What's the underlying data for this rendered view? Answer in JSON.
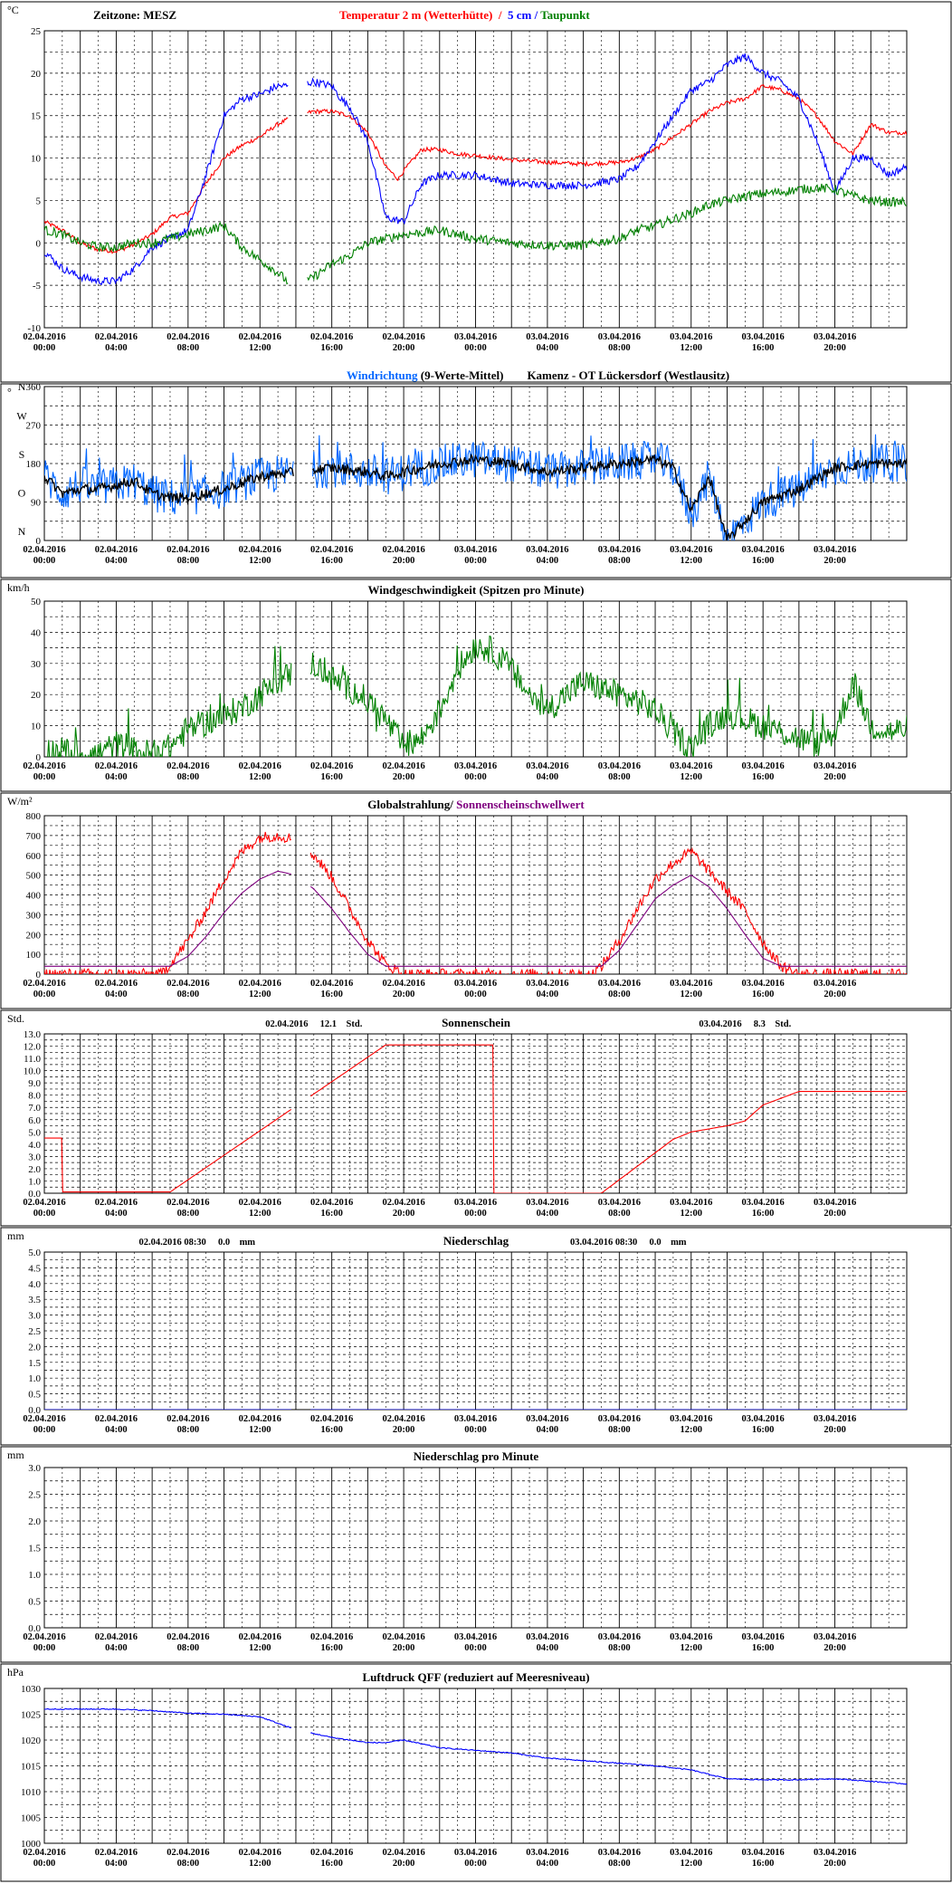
{
  "x_tick_labels": [
    [
      "02.04.2016",
      "00:00"
    ],
    [
      "02.04.2016",
      "04:00"
    ],
    [
      "02.04.2016",
      "08:00"
    ],
    [
      "02.04.2016",
      "12:00"
    ],
    [
      "02.04.2016",
      "16:00"
    ],
    [
      "02.04.2016",
      "20:00"
    ],
    [
      "03.04.2016",
      "00:00"
    ],
    [
      "03.04.2016",
      "04:00"
    ],
    [
      "03.04.2016",
      "08:00"
    ],
    [
      "03.04.2016",
      "12:00"
    ],
    [
      "03.04.2016",
      "16:00"
    ],
    [
      "03.04.2016",
      "20:00"
    ]
  ],
  "chart_data": [
    {
      "id": "temperature",
      "type": "line",
      "unit": "°C",
      "timezone_label": "Zeitzone: MESZ",
      "title_parts": [
        {
          "text": "Temperatur 2 m (Wetterhütte)",
          "color": "#ff0000"
        },
        {
          "text": "  /  ",
          "color": "#ff0000"
        },
        {
          "text": "5 cm",
          "color": "#0000ff"
        },
        {
          "text": " / ",
          "color": "#0000ff"
        },
        {
          "text": "Taupunkt",
          "color": "#008000"
        }
      ],
      "ylim": [
        -10,
        25
      ],
      "y_ticks": [
        "-10",
        "-5",
        "0",
        "5",
        "10",
        "15",
        "20",
        "25"
      ],
      "x_range_hours": [
        0,
        48
      ],
      "gap_hours": [
        13.6,
        14.6
      ],
      "series": [
        {
          "name": "Temperatur 2 m (Wetterhütte)",
          "color": "#ff0000",
          "noise": 0.25,
          "x": [
            0,
            1,
            2,
            3,
            4,
            5,
            6,
            7,
            8,
            9,
            10,
            11,
            12,
            13,
            14,
            15,
            16,
            17,
            18,
            19,
            19.7,
            20,
            21,
            22,
            23,
            24,
            26,
            28,
            30,
            32,
            33,
            34,
            35,
            36,
            37,
            38,
            39,
            40,
            41,
            42,
            43,
            44,
            45,
            46,
            47,
            48
          ],
          "y": [
            2.5,
            1.5,
            0,
            -0.8,
            -1,
            -0.2,
            1,
            3,
            3.5,
            7,
            10,
            11.5,
            12.5,
            14,
            15,
            15.5,
            15.5,
            15,
            13,
            9,
            7.5,
            8.5,
            11,
            11,
            10.5,
            10.3,
            9.8,
            9.5,
            9.3,
            9.5,
            10,
            11,
            12.5,
            14,
            15.5,
            16.5,
            17,
            18.5,
            18,
            17,
            15,
            12,
            10.5,
            14,
            13,
            13
          ]
        },
        {
          "name": "5 cm",
          "color": "#0000ff",
          "noise": 0.45,
          "x": [
            0,
            1,
            2,
            3,
            4,
            5,
            6,
            7,
            8,
            9,
            10,
            11,
            12,
            13,
            14,
            15,
            16,
            16.5,
            17,
            18,
            19,
            20,
            21,
            22,
            23,
            24,
            26,
            28,
            30,
            32,
            33,
            34,
            35,
            36,
            37,
            38,
            39,
            40,
            41,
            42,
            43,
            44,
            45,
            46,
            47,
            48
          ],
          "y": [
            -1,
            -3,
            -4,
            -4.5,
            -4.5,
            -3,
            -0.5,
            0.5,
            1.5,
            8,
            15,
            17,
            17.5,
            18.5,
            18.5,
            19,
            18.5,
            17,
            16,
            12,
            3,
            2.5,
            7,
            8,
            8,
            8,
            7,
            6.8,
            6.8,
            7.5,
            9,
            12,
            15,
            18,
            19,
            21,
            22,
            20,
            19,
            17,
            12,
            6,
            10,
            10,
            8,
            9
          ]
        },
        {
          "name": "Taupunkt",
          "color": "#008000",
          "noise": 0.55,
          "x": [
            0,
            1,
            2,
            3,
            4,
            5,
            6,
            7,
            8,
            9,
            10,
            11,
            12,
            13,
            14,
            15,
            16,
            17,
            18,
            19,
            20,
            21,
            22,
            23,
            24,
            26,
            28,
            30,
            32,
            33,
            34,
            35,
            36,
            37,
            38,
            39,
            40,
            41,
            42,
            43,
            44,
            45,
            46,
            47,
            48
          ],
          "y": [
            1.5,
            1,
            0,
            -0.5,
            -0.5,
            0,
            0,
            0.5,
            1,
            1.5,
            2,
            -0.5,
            -2,
            -3.5,
            -5.5,
            -4,
            -2.5,
            -1.5,
            0,
            0.5,
            1,
            1.2,
            1.5,
            1,
            0.5,
            0,
            -0.3,
            -0.3,
            0.5,
            1.5,
            2,
            2.8,
            3.5,
            4.5,
            5,
            5.5,
            5.8,
            6,
            6.3,
            6.5,
            6.3,
            5.5,
            5,
            4.8,
            4.8
          ]
        }
      ]
    },
    {
      "id": "wind-direction",
      "type": "line",
      "unit": "°",
      "title_parts": [
        {
          "text": "Windrichtung",
          "color": "#0066ff"
        },
        {
          "text": " (9-Werte-Mittel)",
          "color": "#000000"
        },
        {
          "text": "        Kamenz - OT Lückersdorf (Westlausitz)",
          "color": "#000000"
        }
      ],
      "ylim": [
        0,
        360
      ],
      "y_ticks": [
        "0",
        "90",
        "180",
        "270",
        "360"
      ],
      "compass_labels": [
        "N",
        "O",
        "S",
        "W",
        "N"
      ],
      "x_range_hours": [
        0,
        48
      ],
      "gap_hours": [
        13.9,
        14.9
      ],
      "series": [
        {
          "name": "Windrichtung",
          "color": "#0066ff",
          "noise": 45,
          "spikes": true,
          "x": [
            0,
            1,
            2,
            3,
            4,
            5,
            6,
            7,
            8,
            10,
            12,
            14,
            16,
            18,
            19,
            20,
            22,
            24,
            26,
            28,
            30,
            32,
            34,
            35,
            36,
            37,
            38,
            40,
            42,
            44,
            46,
            48
          ],
          "y": [
            150,
            110,
            130,
            120,
            130,
            140,
            110,
            100,
            100,
            120,
            150,
            160,
            170,
            160,
            150,
            160,
            180,
            190,
            180,
            160,
            170,
            180,
            190,
            170,
            60,
            150,
            0,
            90,
            120,
            170,
            180,
            180
          ]
        },
        {
          "name": "9-Werte-Mittel",
          "color": "#000000",
          "noise": 12,
          "x": [
            0,
            1,
            2,
            3,
            4,
            5,
            6,
            7,
            8,
            10,
            12,
            14,
            16,
            18,
            19,
            20,
            22,
            24,
            26,
            28,
            30,
            32,
            34,
            35,
            36,
            37,
            38,
            40,
            42,
            44,
            46,
            48
          ],
          "y": [
            150,
            110,
            120,
            120,
            130,
            140,
            110,
            100,
            100,
            120,
            150,
            160,
            170,
            160,
            150,
            160,
            180,
            190,
            180,
            160,
            170,
            180,
            190,
            170,
            70,
            150,
            0,
            90,
            120,
            170,
            180,
            180
          ]
        }
      ]
    },
    {
      "id": "wind-speed",
      "type": "line",
      "unit": "km/h",
      "title_parts": [
        {
          "text": "Windgeschwindigkeit (Spitzen pro Minute)",
          "color": "#000000"
        }
      ],
      "ylim": [
        0,
        50
      ],
      "y_ticks": [
        "0",
        "10",
        "20",
        "30",
        "40",
        "50"
      ],
      "x_range_hours": [
        0,
        48
      ],
      "gap_hours": [
        13.8,
        14.8
      ],
      "series": [
        {
          "name": "Windgeschwindigkeit",
          "color": "#008000",
          "noise": 4.5,
          "spikes": true,
          "x": [
            0,
            1,
            2,
            3,
            4,
            5,
            6,
            7,
            8,
            9,
            10,
            11,
            12,
            13,
            14,
            15,
            16,
            17,
            18,
            19,
            20,
            21,
            22,
            23,
            24,
            25,
            26,
            27,
            28,
            29,
            30,
            31,
            32,
            33,
            34,
            35,
            36,
            37,
            38,
            39,
            40,
            41,
            42,
            43,
            44,
            45,
            46,
            47,
            48
          ],
          "y": [
            2,
            2,
            1,
            1,
            4,
            2,
            1,
            3,
            9,
            11,
            13,
            16,
            20,
            24,
            28,
            30,
            25,
            22,
            18,
            12,
            3,
            6,
            15,
            28,
            36,
            34,
            28,
            20,
            15,
            20,
            24,
            22,
            20,
            18,
            15,
            8,
            3,
            10,
            14,
            12,
            10,
            8,
            6,
            4,
            8,
            24,
            10,
            8,
            9
          ]
        }
      ]
    },
    {
      "id": "global-radiation",
      "type": "line",
      "unit": "W/m²",
      "title_parts": [
        {
          "text": "Globalstrahlung/ ",
          "color": "#000000"
        },
        {
          "text": "Sonnenscheinschwellwert",
          "color": "#800080"
        }
      ],
      "ylim": [
        0,
        800
      ],
      "y_ticks": [
        "0",
        "100",
        "200",
        "300",
        "400",
        "500",
        "600",
        "700",
        "800"
      ],
      "x_range_hours": [
        0,
        48
      ],
      "gap_hours": [
        13.8,
        14.8
      ],
      "series": [
        {
          "name": "Globalstrahlung",
          "color": "#ff0000",
          "noise": 28,
          "x": [
            0,
            6.5,
            7,
            8,
            9,
            10,
            11,
            12,
            13,
            14,
            15,
            16,
            17,
            18,
            19,
            20,
            21,
            30.5,
            31,
            32,
            33,
            34,
            35,
            36,
            37,
            38,
            39,
            40,
            41,
            42,
            48
          ],
          "y": [
            0,
            0,
            50,
            170,
            320,
            480,
            620,
            690,
            700,
            680,
            600,
            490,
            330,
            170,
            50,
            0,
            0,
            0,
            40,
            170,
            330,
            480,
            560,
            620,
            520,
            420,
            320,
            160,
            40,
            0,
            0
          ]
        },
        {
          "name": "Sonnenscheinschwellwert",
          "color": "#800080",
          "noise": 0,
          "x": [
            0,
            6.5,
            7,
            8,
            9,
            10,
            11,
            12,
            13,
            14,
            15,
            16,
            17,
            18,
            19,
            20,
            21,
            30.5,
            31,
            32,
            33,
            34,
            35,
            36,
            37,
            38,
            39,
            40,
            41,
            42,
            48
          ],
          "y": [
            40,
            40,
            40,
            90,
            190,
            310,
            410,
            480,
            520,
            500,
            430,
            330,
            210,
            100,
            40,
            40,
            40,
            40,
            40,
            120,
            250,
            380,
            450,
            500,
            440,
            330,
            200,
            80,
            40,
            40,
            40
          ]
        }
      ]
    },
    {
      "id": "sunshine",
      "type": "line",
      "unit": "Std.",
      "title_parts": [
        {
          "text": "Sonnenschein",
          "color": "#000000"
        }
      ],
      "annotations": [
        {
          "date": "02.04.2016",
          "value": "12.1",
          "unit": "Std.",
          "at_hour": 15
        },
        {
          "date": "03.04.2016",
          "value": "8.3",
          "unit": "Std.",
          "at_hour": 39
        }
      ],
      "ylim": [
        0,
        13
      ],
      "y_ticks": [
        "0.0",
        "1.0",
        "2.0",
        "3.0",
        "4.0",
        "5.0",
        "6.0",
        "7.0",
        "8.0",
        "9.0",
        "10.0",
        "11.0",
        "12.0",
        "13.0"
      ],
      "x_range_hours": [
        0,
        48
      ],
      "gap_hours": [
        13.8,
        14.8
      ],
      "series": [
        {
          "name": "Sonnenschein",
          "color": "#ff0000",
          "noise": 0,
          "x": [
            0,
            1,
            1.0001,
            7,
            19,
            25,
            25.0001,
            31,
            35,
            36,
            38,
            39,
            40,
            42,
            48
          ],
          "y": [
            4.5,
            4.5,
            0.1,
            0.1,
            12.1,
            12.1,
            0,
            0,
            4.4,
            5.0,
            5.5,
            5.9,
            7.2,
            8.3,
            8.3
          ]
        }
      ]
    },
    {
      "id": "precipitation",
      "type": "line",
      "unit": "mm",
      "title_parts": [
        {
          "text": "Niederschlag",
          "color": "#000000"
        }
      ],
      "annotations": [
        {
          "date": "02.04.2016 08:30",
          "value": "0.0",
          "unit": "mm",
          "at_hour": 8.5
        },
        {
          "date": "03.04.2016 08:30",
          "value": "0.0",
          "unit": "mm",
          "at_hour": 32.5
        }
      ],
      "ylim": [
        0,
        5
      ],
      "y_ticks": [
        "0.0",
        "0.5",
        "1.0",
        "1.5",
        "2.0",
        "2.5",
        "3.0",
        "3.5",
        "4.0",
        "4.5",
        "5.0"
      ],
      "x_range_hours": [
        0,
        48
      ],
      "gap_hours": [
        13.8,
        14.8
      ],
      "series": [
        {
          "name": "Niederschlag",
          "color": "#0000ff",
          "noise": 0,
          "x": [
            0,
            48
          ],
          "y": [
            0,
            0
          ]
        }
      ]
    },
    {
      "id": "precipitation-per-minute",
      "type": "line",
      "unit": "mm",
      "title_parts": [
        {
          "text": "Niederschlag pro Minute",
          "color": "#000000"
        }
      ],
      "ylim": [
        0,
        3
      ],
      "y_ticks": [
        "0.0",
        "0.5",
        "1.0",
        "1.5",
        "2.0",
        "2.5",
        "3.0"
      ],
      "x_range_hours": [
        0,
        48
      ],
      "series": []
    },
    {
      "id": "pressure",
      "type": "line",
      "unit": "hPa",
      "title_parts": [
        {
          "text": "Luftdruck QFF (reduziert auf Meeresniveau)",
          "color": "#000000"
        }
      ],
      "ylim": [
        1000,
        1030
      ],
      "y_ticks": [
        "1000",
        "1005",
        "1010",
        "1015",
        "1020",
        "1025",
        "1030"
      ],
      "x_range_hours": [
        0,
        48
      ],
      "gap_hours": [
        13.8,
        14.8
      ],
      "series": [
        {
          "name": "Luftdruck QFF",
          "color": "#0000ff",
          "noise": 0.1,
          "x": [
            0,
            2,
            4,
            6,
            8,
            10,
            12,
            14,
            16,
            18,
            19,
            20,
            22,
            24,
            26,
            28,
            30,
            32,
            34,
            36,
            38,
            40,
            42,
            44,
            46,
            48
          ],
          "y": [
            1026,
            1026,
            1026,
            1025.7,
            1025.2,
            1025,
            1024.5,
            1022,
            1020.5,
            1019.5,
            1019.5,
            1020,
            1018.5,
            1018,
            1017.5,
            1016.5,
            1016,
            1015.5,
            1015,
            1014.2,
            1012.5,
            1012.3,
            1012.3,
            1012.5,
            1012,
            1011.5
          ]
        }
      ]
    }
  ]
}
